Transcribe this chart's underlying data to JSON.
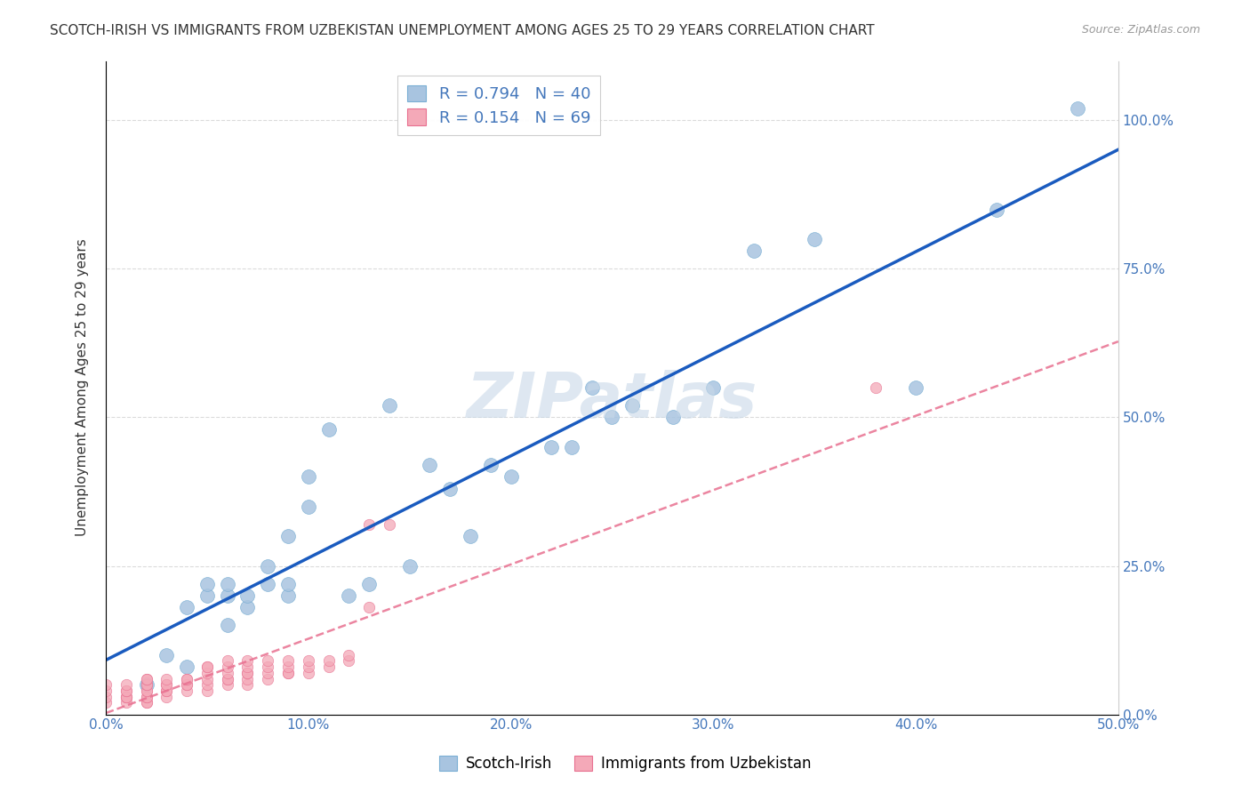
{
  "title": "SCOTCH-IRISH VS IMMIGRANTS FROM UZBEKISTAN UNEMPLOYMENT AMONG AGES 25 TO 29 YEARS CORRELATION CHART",
  "source": "Source: ZipAtlas.com",
  "ylabel": "Unemployment Among Ages 25 to 29 years",
  "xmin": 0.0,
  "xmax": 0.5,
  "ymin": 0.0,
  "ymax": 1.1,
  "legend1_label": "Scotch-Irish",
  "legend2_label": "Immigrants from Uzbekistan",
  "R1": 0.794,
  "N1": 40,
  "R2": 0.154,
  "N2": 69,
  "scotch_irish_color": "#a8c4e0",
  "uzbekistan_color": "#f4a9b8",
  "scotch_irish_edge": "#7aafd4",
  "uzbekistan_edge": "#e87090",
  "regression_line_blue": "#1a5bbf",
  "regression_line_pink": "#e87090",
  "watermark_color": "#c8d8e8",
  "background_color": "#ffffff",
  "grid_color": "#cccccc",
  "title_color": "#333333",
  "tick_label_color": "#4477bb",
  "scotch_irish_x": [
    0.02,
    0.03,
    0.04,
    0.04,
    0.05,
    0.05,
    0.06,
    0.06,
    0.06,
    0.07,
    0.07,
    0.08,
    0.08,
    0.09,
    0.09,
    0.09,
    0.1,
    0.1,
    0.11,
    0.12,
    0.13,
    0.14,
    0.15,
    0.16,
    0.17,
    0.18,
    0.19,
    0.2,
    0.22,
    0.23,
    0.24,
    0.25,
    0.26,
    0.28,
    0.3,
    0.32,
    0.35,
    0.4,
    0.44,
    0.48
  ],
  "scotch_irish_y": [
    0.05,
    0.1,
    0.08,
    0.18,
    0.2,
    0.22,
    0.15,
    0.2,
    0.22,
    0.18,
    0.2,
    0.22,
    0.25,
    0.2,
    0.22,
    0.3,
    0.35,
    0.4,
    0.48,
    0.2,
    0.22,
    0.52,
    0.25,
    0.42,
    0.38,
    0.3,
    0.42,
    0.4,
    0.45,
    0.45,
    0.55,
    0.5,
    0.52,
    0.5,
    0.55,
    0.78,
    0.8,
    0.55,
    0.85,
    1.02
  ],
  "uzbekistan_x": [
    0.0,
    0.0,
    0.0,
    0.0,
    0.01,
    0.01,
    0.01,
    0.01,
    0.01,
    0.01,
    0.01,
    0.02,
    0.02,
    0.02,
    0.02,
    0.02,
    0.02,
    0.02,
    0.02,
    0.02,
    0.02,
    0.03,
    0.03,
    0.03,
    0.03,
    0.03,
    0.03,
    0.04,
    0.04,
    0.04,
    0.04,
    0.04,
    0.05,
    0.05,
    0.05,
    0.05,
    0.05,
    0.05,
    0.06,
    0.06,
    0.06,
    0.06,
    0.06,
    0.06,
    0.07,
    0.07,
    0.07,
    0.07,
    0.07,
    0.07,
    0.08,
    0.08,
    0.08,
    0.08,
    0.09,
    0.09,
    0.09,
    0.09,
    0.1,
    0.1,
    0.1,
    0.11,
    0.11,
    0.12,
    0.12,
    0.13,
    0.13,
    0.14,
    0.38
  ],
  "uzbekistan_y": [
    0.02,
    0.03,
    0.04,
    0.05,
    0.02,
    0.03,
    0.03,
    0.03,
    0.04,
    0.04,
    0.05,
    0.02,
    0.02,
    0.03,
    0.03,
    0.04,
    0.04,
    0.05,
    0.05,
    0.06,
    0.06,
    0.03,
    0.04,
    0.04,
    0.05,
    0.05,
    0.06,
    0.04,
    0.05,
    0.05,
    0.06,
    0.06,
    0.04,
    0.05,
    0.06,
    0.07,
    0.08,
    0.08,
    0.05,
    0.06,
    0.06,
    0.07,
    0.08,
    0.09,
    0.05,
    0.06,
    0.07,
    0.07,
    0.08,
    0.09,
    0.06,
    0.07,
    0.08,
    0.09,
    0.07,
    0.07,
    0.08,
    0.09,
    0.07,
    0.08,
    0.09,
    0.08,
    0.09,
    0.09,
    0.1,
    0.18,
    0.32,
    0.32,
    0.55
  ]
}
